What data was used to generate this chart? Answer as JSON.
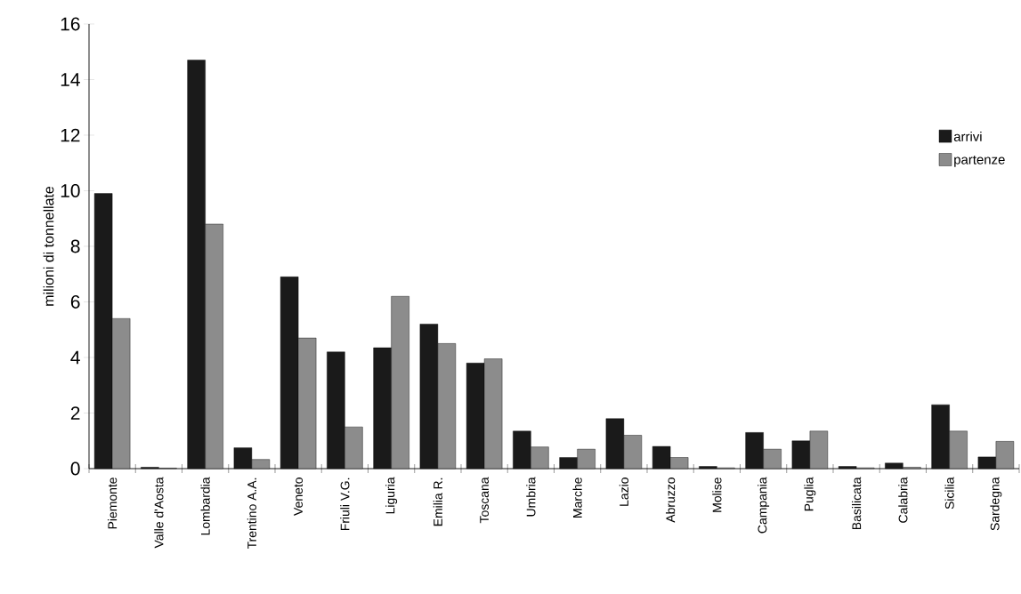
{
  "chart_data": {
    "type": "bar",
    "ylabel": "milioni di tonnellate",
    "categories": [
      "Piemonte",
      "Valle d'Aosta",
      "Lombardia",
      "Trentino A.A.",
      "Veneto",
      "Friuli V.G.",
      "Liguria",
      "Emilia R.",
      "Toscana",
      "Umbria",
      "Marche",
      "Lazio",
      "Abruzzo",
      "Molise",
      "Campania",
      "Puglia",
      "Basilicata",
      "Calabria",
      "Sicilia",
      "Sardegna"
    ],
    "series": [
      {
        "name": "arrivi",
        "color": "#1a1a1a",
        "values": [
          9.9,
          0.05,
          14.7,
          0.75,
          6.9,
          4.2,
          4.35,
          5.2,
          3.8,
          1.35,
          0.4,
          1.8,
          0.8,
          0.08,
          1.3,
          1.0,
          0.08,
          0.2,
          2.3,
          0.42
        ]
      },
      {
        "name": "partenze",
        "color": "#8c8c8c",
        "values": [
          5.4,
          0.02,
          8.8,
          0.33,
          4.7,
          1.5,
          6.2,
          4.5,
          3.95,
          0.78,
          0.7,
          1.2,
          0.4,
          0.03,
          0.7,
          1.35,
          0.03,
          0.05,
          1.35,
          0.98
        ]
      }
    ],
    "ylim": [
      0,
      16
    ],
    "yticks": [
      0,
      2,
      4,
      6,
      8,
      10,
      12,
      14,
      16
    ],
    "legend": "right"
  }
}
